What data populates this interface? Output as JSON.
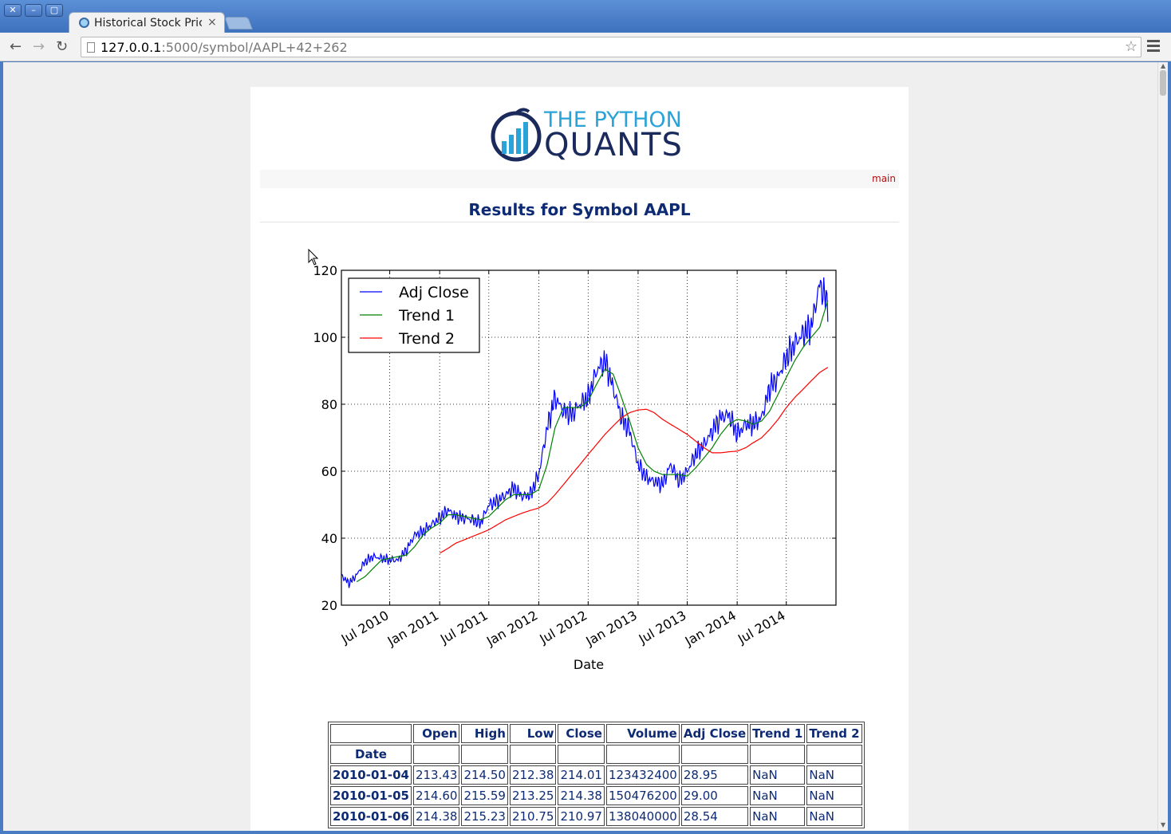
{
  "browser": {
    "window_buttons": [
      "✕",
      "–",
      "▢"
    ],
    "tab_title": "Historical Stock Pric",
    "tab_close": "×",
    "url_host": "127.0.0.1",
    "url_rest": ":5000/symbol/AAPL+42+262"
  },
  "page": {
    "logo_line1": "THE PYTHON",
    "logo_line2": "QUANTS",
    "nav_main": "main",
    "results_title": "Results for Symbol AAPL"
  },
  "chart_data": {
    "type": "line",
    "title": "",
    "xlabel": "Date",
    "ylabel": "",
    "ylim": [
      20,
      120
    ],
    "yticks": [
      20,
      40,
      60,
      80,
      100,
      120
    ],
    "xticks": [
      "Jul 2010",
      "Jan 2011",
      "Jul 2011",
      "Jan 2012",
      "Jul 2012",
      "Jan 2013",
      "Jul 2013",
      "Jan 2014",
      "Jul 2014"
    ],
    "xlim": [
      "2010-01-04",
      "2014-12-31"
    ],
    "grid": true,
    "legend_position": "top-left",
    "series": [
      {
        "name": "Adj Close",
        "color": "#0000ff",
        "x": [
          "2010-01-04",
          "2010-02-01",
          "2010-03-01",
          "2010-04-01",
          "2010-05-01",
          "2010-06-01",
          "2010-07-01",
          "2010-08-01",
          "2010-09-01",
          "2010-10-01",
          "2010-11-01",
          "2010-12-01",
          "2011-01-01",
          "2011-02-01",
          "2011-03-01",
          "2011-04-01",
          "2011-05-01",
          "2011-06-01",
          "2011-07-01",
          "2011-08-01",
          "2011-09-01",
          "2011-10-01",
          "2011-11-01",
          "2011-12-01",
          "2012-01-01",
          "2012-02-01",
          "2012-03-01",
          "2012-04-01",
          "2012-05-01",
          "2012-06-01",
          "2012-07-01",
          "2012-08-01",
          "2012-09-01",
          "2012-10-01",
          "2012-11-01",
          "2012-12-01",
          "2013-01-01",
          "2013-02-01",
          "2013-03-01",
          "2013-04-01",
          "2013-05-01",
          "2013-06-01",
          "2013-07-01",
          "2013-08-01",
          "2013-09-01",
          "2013-10-01",
          "2013-11-01",
          "2013-12-01",
          "2014-01-01",
          "2014-02-01",
          "2014-03-01",
          "2014-04-01",
          "2014-05-01",
          "2014-06-01",
          "2014-07-01",
          "2014-08-01",
          "2014-09-01",
          "2014-10-01",
          "2014-11-01",
          "2014-12-01"
        ],
        "values": [
          28.9,
          26.5,
          29,
          33,
          34.5,
          34,
          33.5,
          33.5,
          36.5,
          41,
          42,
          44,
          46,
          48.5,
          46.5,
          46,
          45.5,
          44.5,
          50,
          51,
          53,
          55,
          52.5,
          53,
          59,
          73,
          82,
          78,
          77,
          80,
          82,
          90,
          93,
          85,
          76,
          72,
          62,
          58,
          57,
          56,
          62,
          57,
          60,
          65,
          68,
          72,
          76,
          77,
          71,
          74,
          74,
          76,
          85,
          88,
          94,
          98,
          101,
          103,
          116,
          110
        ]
      },
      {
        "name": "Trend 1",
        "color": "#008000",
        "x": [
          "2010-03-01",
          "2010-04-01",
          "2010-05-01",
          "2010-06-01",
          "2010-07-01",
          "2010-08-01",
          "2010-09-01",
          "2010-10-01",
          "2010-11-01",
          "2010-12-01",
          "2011-01-01",
          "2011-02-01",
          "2011-03-01",
          "2011-04-01",
          "2011-05-01",
          "2011-06-01",
          "2011-07-01",
          "2011-08-01",
          "2011-09-01",
          "2011-10-01",
          "2011-11-01",
          "2011-12-01",
          "2012-01-01",
          "2012-02-01",
          "2012-03-01",
          "2012-04-01",
          "2012-05-01",
          "2012-06-01",
          "2012-07-01",
          "2012-08-01",
          "2012-09-01",
          "2012-10-01",
          "2012-11-01",
          "2012-12-01",
          "2013-01-01",
          "2013-02-01",
          "2013-03-01",
          "2013-04-01",
          "2013-05-01",
          "2013-06-01",
          "2013-07-01",
          "2013-08-01",
          "2013-09-01",
          "2013-10-01",
          "2013-11-01",
          "2013-12-01",
          "2014-01-01",
          "2014-02-01",
          "2014-03-01",
          "2014-04-01",
          "2014-05-01",
          "2014-06-01",
          "2014-07-01",
          "2014-08-01",
          "2014-09-01",
          "2014-10-01",
          "2014-11-01",
          "2014-12-01"
        ],
        "values": [
          27,
          28.5,
          31,
          33.5,
          34,
          34.5,
          35,
          37.5,
          41,
          43,
          44.5,
          47,
          47,
          46.5,
          46,
          45.5,
          46.5,
          49,
          51.5,
          53,
          53,
          53,
          54.5,
          62,
          73,
          79,
          79,
          79,
          81,
          86,
          90.5,
          89,
          82,
          75,
          67,
          62,
          60,
          59,
          59,
          59,
          58.5,
          61,
          64,
          67,
          71,
          74,
          75.5,
          75,
          74,
          75,
          78,
          83,
          88,
          93,
          97,
          100,
          103,
          111
        ]
      },
      {
        "name": "Trend 2",
        "color": "#ff0000",
        "x": [
          "2011-01-01",
          "2011-02-01",
          "2011-03-01",
          "2011-04-01",
          "2011-05-01",
          "2011-06-01",
          "2011-07-01",
          "2011-08-01",
          "2011-09-01",
          "2011-10-01",
          "2011-11-01",
          "2011-12-01",
          "2012-01-01",
          "2012-02-01",
          "2012-03-01",
          "2012-04-01",
          "2012-05-01",
          "2012-06-01",
          "2012-07-01",
          "2012-08-01",
          "2012-09-01",
          "2012-10-01",
          "2012-11-01",
          "2012-12-01",
          "2013-01-01",
          "2013-02-01",
          "2013-03-01",
          "2013-04-01",
          "2013-05-01",
          "2013-06-01",
          "2013-07-01",
          "2013-08-01",
          "2013-09-01",
          "2013-10-01",
          "2013-11-01",
          "2013-12-01",
          "2014-01-01",
          "2014-02-01",
          "2014-03-01",
          "2014-04-01",
          "2014-05-01",
          "2014-06-01",
          "2014-07-01",
          "2014-08-01",
          "2014-09-01",
          "2014-10-01",
          "2014-11-01",
          "2014-12-01"
        ],
        "values": [
          35.5,
          37,
          38.5,
          39.5,
          40.5,
          41.5,
          42.5,
          44,
          45.5,
          46.5,
          47.5,
          48.3,
          49,
          50.5,
          53,
          56,
          59,
          62,
          65,
          68,
          71,
          73.5,
          76,
          77.5,
          78.3,
          78.5,
          77.5,
          75.5,
          74,
          72.5,
          71,
          69,
          67,
          65.5,
          65.5,
          65.8,
          66,
          67,
          68.5,
          70,
          72.5,
          75.5,
          79,
          82,
          84.5,
          87,
          89.5,
          91
        ]
      }
    ]
  },
  "table": {
    "columns": [
      "",
      "Open",
      "High",
      "Low",
      "Close",
      "Volume",
      "Adj Close",
      "Trend 1",
      "Trend 2"
    ],
    "index_name": "Date",
    "rows": [
      [
        "2010-01-04",
        "213.43",
        "214.50",
        "212.38",
        "214.01",
        "123432400",
        "28.95",
        "NaN",
        "NaN"
      ],
      [
        "2010-01-05",
        "214.60",
        "215.59",
        "213.25",
        "214.38",
        "150476200",
        "29.00",
        "NaN",
        "NaN"
      ],
      [
        "2010-01-06",
        "214.38",
        "215.23",
        "210.75",
        "210.97",
        "138040000",
        "28.54",
        "NaN",
        "NaN"
      ]
    ]
  }
}
